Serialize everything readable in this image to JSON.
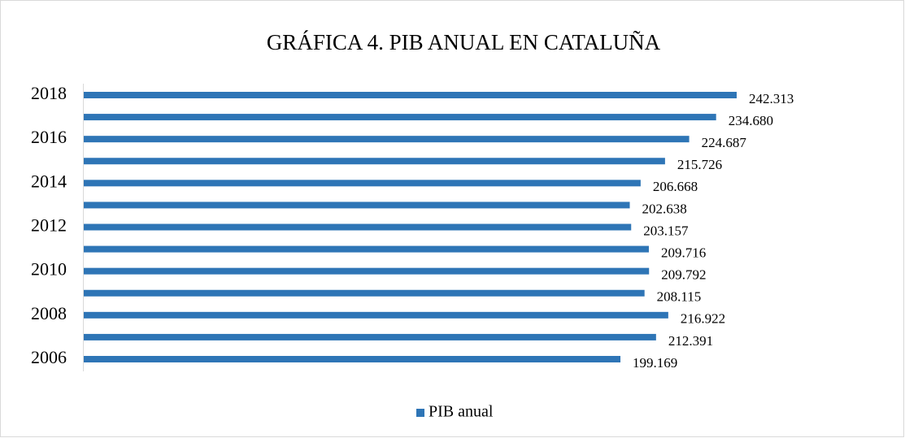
{
  "chart_data": {
    "type": "hbar",
    "title": "GRÁFICA 4. PIB ANUAL EN CATALUÑA",
    "categories": [
      "2006",
      null,
      "2008",
      null,
      "2010",
      null,
      "2012",
      null,
      "2014",
      null,
      "2016",
      null,
      "2018"
    ],
    "series": [
      {
        "name": "PIB anual",
        "color": "#2e75b6",
        "values": [
          199169,
          212391,
          216922,
          208115,
          209792,
          209716,
          203157,
          202638,
          206668,
          215726,
          224687,
          234680,
          242313
        ],
        "value_labels": [
          "199.169",
          "212.391",
          "216.922",
          "208.115",
          "209.792",
          "209.716",
          "203.157",
          "202.638",
          "206.668",
          "215.726",
          "224.687",
          "234.680",
          "242.313"
        ]
      }
    ],
    "legend": "bottom"
  }
}
